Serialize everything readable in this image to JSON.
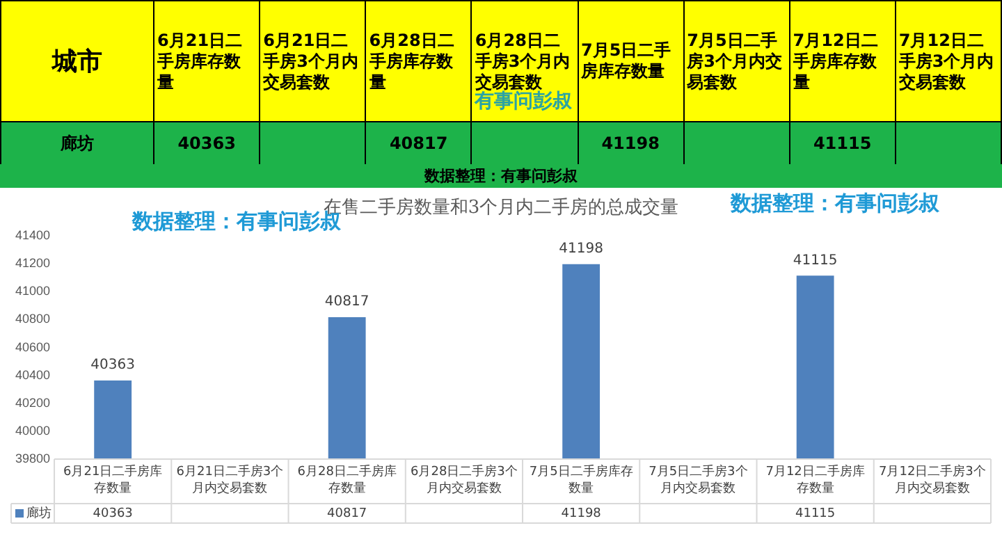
{
  "chart_data": {
    "type": "bar",
    "title": "在售二手房数量和3个月内二手房的总成交量",
    "categories": [
      "6月21日二手房库存数量",
      "6月21日二手房3个月内交易套数",
      "6月28日二手房库存数量",
      "6月28日二手房3个月内交易套数",
      "7月5日二手房库存数量",
      "7月5日二手房3个月内交易套数",
      "7月12日二手房库存数量",
      "7月12日二手房3个月内交易套数"
    ],
    "series": [
      {
        "name": "廊坊",
        "color": "#4f81bd",
        "values": [
          40363,
          null,
          40817,
          null,
          41198,
          null,
          41115,
          null
        ]
      }
    ],
    "legend_title": "城市",
    "ylim": [
      39800,
      41400
    ],
    "yticks": [
      39800,
      40000,
      40200,
      40400,
      40600,
      40800,
      41000,
      41200,
      41400
    ],
    "grid": false,
    "legend": "bottom",
    "data_labels": true,
    "annotations": [
      "有事问彭叔",
      "数据整理：有事问彭叔",
      "数据整理：有事问彭叔",
      "数据整理：有事问彭叔",
      "40363",
      "40817",
      "41198",
      "41115",
      "40363",
      "40817",
      "41198",
      "41115"
    ]
  }
}
